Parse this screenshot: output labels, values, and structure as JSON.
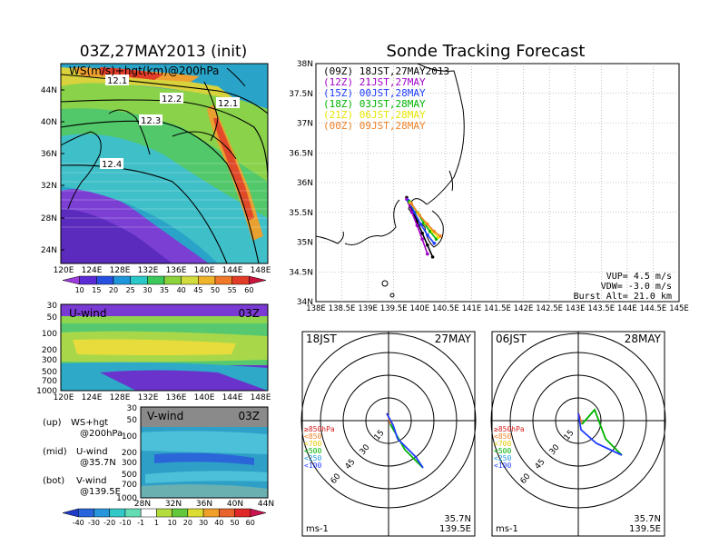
{
  "left_title": "03Z,27MAY2013 (init)",
  "right_title": "Sonde Tracking Forecast",
  "map_panel": {
    "label": "WS(m/s)+hgt(km)@200hPa",
    "lat_ticks": [
      "44N",
      "40N",
      "36N",
      "32N",
      "28N",
      "24N"
    ],
    "lon_ticks": [
      "120E",
      "124E",
      "128E",
      "132E",
      "136E",
      "140E",
      "144E",
      "148E"
    ],
    "contours": [
      "12.1",
      "12.2",
      "12.1",
      "12.3",
      "12.4"
    ],
    "colorbar": [
      "10",
      "15",
      "20",
      "25",
      "30",
      "35",
      "40",
      "45",
      "50",
      "55",
      "60"
    ]
  },
  "u_panel": {
    "label": "U-wind",
    "time": "03Z",
    "p_ticks": [
      "30",
      "50",
      "100",
      "200",
      "300",
      "500",
      "700",
      "1000"
    ],
    "lon_ticks": [
      "120E",
      "124E",
      "128E",
      "132E",
      "136E",
      "140E",
      "144E",
      "148E"
    ]
  },
  "v_panel": {
    "label": "V-wind",
    "time": "03Z",
    "p_ticks": [
      "30",
      "50",
      "100",
      "200",
      "300",
      "500",
      "700",
      "1000"
    ],
    "lat_ticks": [
      "28N",
      "32N",
      "36N",
      "40N",
      "44N"
    ]
  },
  "notes": [
    {
      "pos": "(up)",
      "text": "WS+hgt",
      "sub": "@200hPa"
    },
    {
      "pos": "(mid)",
      "text": "U-wind",
      "sub": "@35.7N"
    },
    {
      "pos": "(bot)",
      "text": "V-wind",
      "sub": "@139.5E"
    }
  ],
  "bottom_colorbar": [
    "-40",
    "-30",
    "-20",
    "-10",
    "-1",
    "1",
    "10",
    "20",
    "30",
    "40",
    "50",
    "60"
  ],
  "track_panel": {
    "lat_ticks": [
      "38N",
      "37.5N",
      "37N",
      "36.5N",
      "36N",
      "35.5N",
      "35N",
      "34.5N",
      "34N"
    ],
    "lon_ticks": [
      "138E",
      "138.5E",
      "139E",
      "139.5E",
      "140E",
      "140.5E",
      "141E",
      "141.5E",
      "142E",
      "142.5E",
      "143E",
      "143.5E",
      "144E",
      "144.5E",
      "145E"
    ],
    "legend": [
      {
        "text": "(09Z) 18JST,27MAY2013",
        "color": "#000000"
      },
      {
        "text": "(12Z) 21JST,27MAY",
        "color": "#a000c8"
      },
      {
        "text": "(15Z) 00JST,28MAY",
        "color": "#1e3cff"
      },
      {
        "text": "(18Z) 03JST,28MAY",
        "color": "#00b400"
      },
      {
        "text": "(21Z) 06JST,28MAY",
        "color": "#e6e600"
      },
      {
        "text": "(00Z) 09JST,28MAY",
        "color": "#f08228"
      }
    ],
    "vup": "VUP= 4.5 m/s",
    "vdw": "VDW= -3.0 m/s",
    "burst": "Burst Alt= 21.0 km"
  },
  "hodo_left": {
    "time": "18JST",
    "date": "27MAY",
    "rings": [
      "15",
      "30",
      "45",
      "60"
    ],
    "units": "ms-1",
    "loc_lat": "35.7N",
    "loc_lon": "139.5E",
    "levels": [
      "≥850hPa",
      "<850",
      "<700",
      "<500",
      "<250",
      "<100"
    ]
  },
  "hodo_right": {
    "time": "06JST",
    "date": "28MAY",
    "rings": [
      "15",
      "30",
      "45",
      "60"
    ],
    "units": "ms-1",
    "loc_lat": "35.7N",
    "loc_lon": "139.5E",
    "levels": [
      "≥850hPa",
      "<850",
      "<700",
      "<500",
      "<250",
      "<100"
    ]
  },
  "chart_data": [
    {
      "type": "heatmap",
      "title": "WS(m/s)+hgt(km)@200hPa",
      "xlabel": "",
      "ylabel": "",
      "x_ticks": [
        "120E",
        "124E",
        "128E",
        "132E",
        "136E",
        "140E",
        "144E",
        "148E"
      ],
      "y_ticks": [
        "24N",
        "28N",
        "32N",
        "36N",
        "40N",
        "44N"
      ],
      "contour_levels_km": [
        12.1,
        12.2,
        12.3,
        12.4
      ],
      "colorbar_levels": [
        10,
        15,
        20,
        25,
        30,
        35,
        40,
        45,
        50,
        55,
        60
      ]
    },
    {
      "type": "line",
      "title": "Sonde Tracking Forecast",
      "xlim": [
        138,
        145
      ],
      "ylim": [
        34,
        38
      ],
      "series": [
        {
          "name": "(09Z) 18JST,27MAY2013",
          "x": [
            139.75,
            139.85,
            139.95,
            140.05,
            140.15,
            140.25
          ],
          "y": [
            35.75,
            35.55,
            35.35,
            35.15,
            34.95,
            34.75
          ]
        },
        {
          "name": "(12Z) 21JST,27MAY",
          "x": [
            139.75,
            139.85,
            139.95,
            140.05,
            140.15
          ],
          "y": [
            35.72,
            35.5,
            35.28,
            35.05,
            34.8
          ]
        },
        {
          "name": "(15Z) 00JST,28MAY",
          "x": [
            139.78,
            139.9,
            140.02,
            140.15,
            140.28
          ],
          "y": [
            35.7,
            35.5,
            35.3,
            35.12,
            34.98
          ]
        },
        {
          "name": "(18Z) 03JST,28MAY",
          "x": [
            139.8,
            139.95,
            140.08,
            140.2,
            140.32
          ],
          "y": [
            35.68,
            35.5,
            35.32,
            35.18,
            35.05
          ]
        },
        {
          "name": "(21Z) 06JST,28MAY",
          "x": [
            139.82,
            139.97,
            140.12,
            140.25,
            140.36
          ],
          "y": [
            35.66,
            35.48,
            35.32,
            35.18,
            35.08
          ]
        },
        {
          "name": "(00Z) 09JST,28MAY",
          "x": [
            139.84,
            140.0,
            140.15,
            140.28,
            140.4
          ],
          "y": [
            35.65,
            35.45,
            35.3,
            35.18,
            35.1
          ]
        }
      ]
    }
  ]
}
